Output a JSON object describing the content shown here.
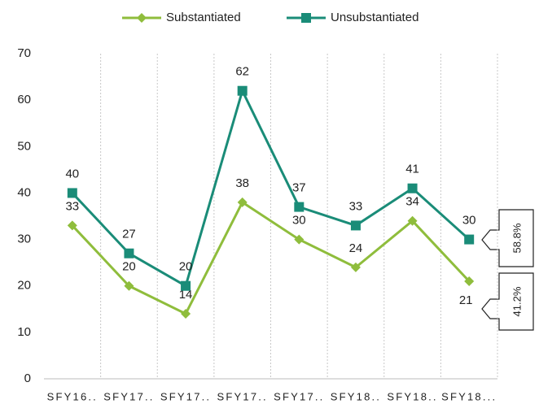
{
  "chart_data": {
    "type": "line",
    "categories": [
      "SFY16..",
      "SFY17..",
      "SFY17..",
      "SFY17..",
      "SFY17..",
      "SFY18..",
      "SFY18..",
      "SFY18..."
    ],
    "series": [
      {
        "name": "Substantiated",
        "color": "#8fbd3c",
        "marker": "diamond",
        "values": [
          33,
          20,
          14,
          38,
          30,
          24,
          34,
          21
        ]
      },
      {
        "name": "Unsubstantiated",
        "color": "#1a8c78",
        "marker": "square",
        "values": [
          40,
          27,
          20,
          62,
          37,
          33,
          41,
          30
        ]
      }
    ],
    "ylim": [
      0,
      70
    ],
    "yticks": [
      0,
      10,
      20,
      30,
      40,
      50,
      60,
      70
    ],
    "grid": true,
    "legend": "top",
    "annotations": [
      "58.8%",
      "41.2%"
    ]
  }
}
